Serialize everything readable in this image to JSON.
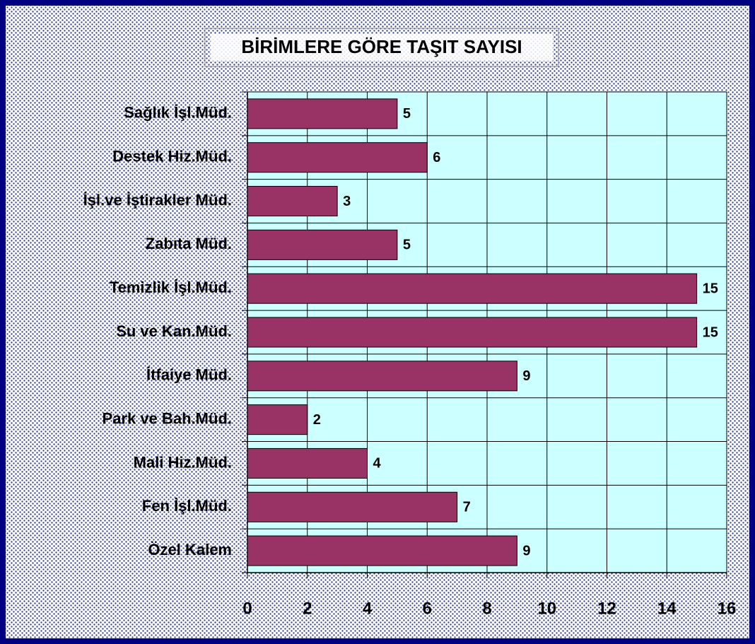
{
  "chart_data": {
    "type": "bar",
    "orientation": "horizontal",
    "title": "BİRİMLERE GÖRE TAŞIT SAYISI",
    "categories": [
      "Sağlık İşl.Müd.",
      "Destek Hiz.Müd.",
      "İşl.ve İştirakler Müd.",
      "Zabıta Müd.",
      "Temizlik İşl.Müd.",
      "Su ve Kan.Müd.",
      "İtfaiye Müd.",
      "Park ve Bah.Müd.",
      "Mali Hiz.Müd.",
      "Fen İşl.Müd.",
      "Özel Kalem"
    ],
    "values": [
      5,
      6,
      3,
      5,
      15,
      15,
      9,
      2,
      4,
      7,
      9
    ],
    "color": "#993366",
    "xlim": [
      0,
      16
    ],
    "xticks": [
      0,
      2,
      4,
      6,
      8,
      10,
      12,
      14,
      16
    ],
    "grid": true
  }
}
